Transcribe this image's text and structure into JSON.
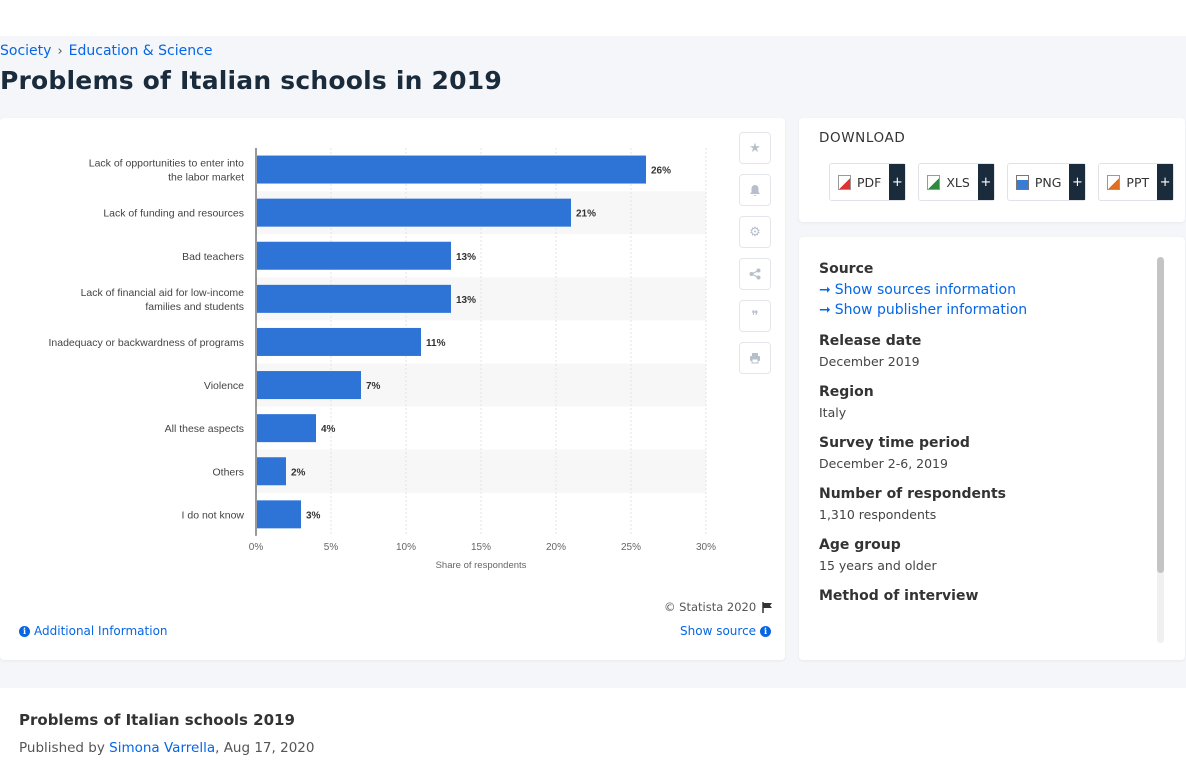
{
  "breadcrumb": {
    "item1": "Society",
    "separator": "›",
    "item2": "Education & Science"
  },
  "page_title": "Problems of Italian schools in 2019",
  "chart_data": {
    "type": "bar",
    "orientation": "horizontal",
    "categories": [
      "Lack of opportunities to enter into the labor market",
      "Lack of funding and resources",
      "Bad teachers",
      "Lack of financial aid for low-income families and students",
      "Inadequacy or backwardness of programs",
      "Violence",
      "All these aspects",
      "Others",
      "I do not know"
    ],
    "values": [
      26,
      21,
      13,
      13,
      11,
      7,
      4,
      2,
      3
    ],
    "value_labels": [
      "26%",
      "21%",
      "13%",
      "13%",
      "11%",
      "7%",
      "4%",
      "2%",
      "3%"
    ],
    "xlabel": "Share of respondents",
    "xticks": [
      "0%",
      "5%",
      "10%",
      "15%",
      "20%",
      "25%",
      "30%"
    ],
    "xlim": [
      0,
      30
    ],
    "grid": true,
    "bar_color": "#2e73d6"
  },
  "chart_footer": {
    "copyright": "© Statista 2020",
    "additional_info": "Additional Information",
    "show_source": "Show source"
  },
  "download": {
    "title": "DOWNLOAD",
    "buttons": [
      "PDF",
      "XLS",
      "PNG",
      "PPT"
    ],
    "plus": "+"
  },
  "details": {
    "source_label": "Source",
    "show_sources": "Show sources information",
    "show_publisher": "Show publisher information",
    "release_label": "Release date",
    "release_value": "December 2019",
    "region_label": "Region",
    "region_value": "Italy",
    "period_label": "Survey time period",
    "period_value": "December 2-6, 2019",
    "respondents_label": "Number of respondents",
    "respondents_value": "1,310 respondents",
    "age_label": "Age group",
    "age_value": "15 years and older",
    "method_label": "Method of interview"
  },
  "bottom": {
    "title": "Problems of Italian schools 2019",
    "published_prefix": "Published by",
    "author": "Simona Varrella",
    "date": ", Aug 17, 2020"
  }
}
